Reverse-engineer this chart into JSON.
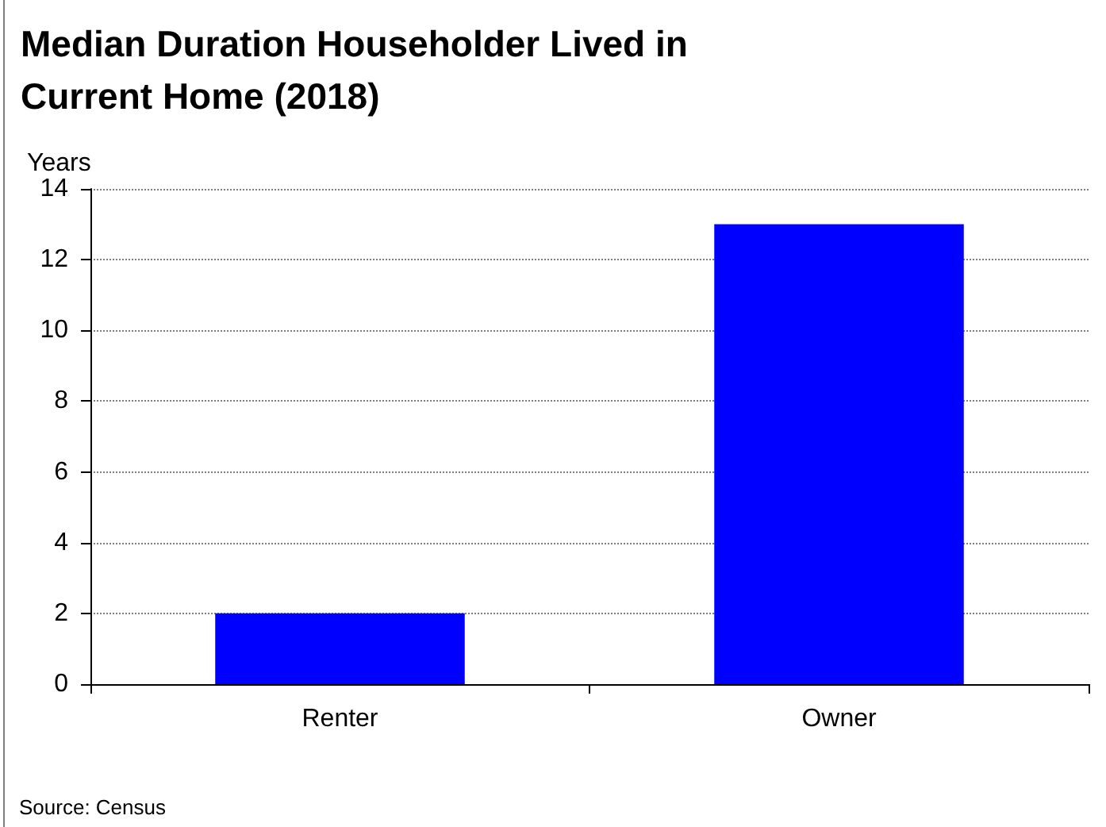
{
  "chart_data": {
    "type": "bar",
    "title": "Median Duration Householder Lived in Current Home (2018)",
    "ylabel": "Years",
    "categories": [
      "Renter",
      "Owner"
    ],
    "values": [
      2,
      13
    ],
    "color": "#0000ff",
    "ylim": [
      0,
      14
    ],
    "yticks": [
      0,
      2,
      4,
      6,
      8,
      10,
      12,
      14
    ],
    "grid": "y",
    "annotations": [
      "Source: Census"
    ]
  }
}
